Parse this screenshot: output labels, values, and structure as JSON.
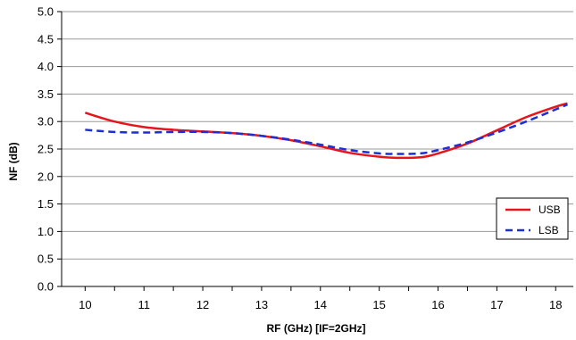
{
  "chart_data": {
    "type": "line",
    "xlabel": "RF (GHz) [IF=2GHz]",
    "ylabel": "NF (dB)",
    "xlim": [
      9.6,
      18.3
    ],
    "ylim": [
      0,
      5
    ],
    "x_ticks": [
      10,
      11,
      12,
      13,
      14,
      15,
      16,
      17,
      18
    ],
    "x_tick_labels": [
      "10",
      "11",
      "12",
      "13",
      "14",
      "15",
      "16",
      "17",
      "18"
    ],
    "y_ticks": [
      0,
      0.5,
      1,
      1.5,
      2,
      2.5,
      3,
      3.5,
      4,
      4.5,
      5
    ],
    "y_tick_labels": [
      "0.0",
      "0.5",
      "1.0",
      "1.5",
      "2.0",
      "2.5",
      "3.0",
      "3.5",
      "4.0",
      "4.5",
      "5.0"
    ],
    "grid": "horizontal",
    "legend_position": "right",
    "series": [
      {
        "name": "USB",
        "color": "#e8141b",
        "style": "solid",
        "x": [
          10.0,
          10.5,
          11.0,
          11.5,
          12.0,
          12.5,
          13.0,
          13.5,
          14.0,
          14.5,
          15.0,
          15.3,
          15.7,
          16.0,
          16.5,
          17.0,
          17.5,
          18.0,
          18.2
        ],
        "y": [
          3.16,
          3.0,
          2.9,
          2.85,
          2.82,
          2.79,
          2.74,
          2.66,
          2.55,
          2.43,
          2.36,
          2.34,
          2.35,
          2.42,
          2.6,
          2.84,
          3.08,
          3.27,
          3.33
        ]
      },
      {
        "name": "LSB",
        "color": "#1c2fd6",
        "style": "dashed",
        "x": [
          10.0,
          10.5,
          11.0,
          11.5,
          12.0,
          12.5,
          13.0,
          13.5,
          14.0,
          14.5,
          15.0,
          15.3,
          15.7,
          16.0,
          16.5,
          17.0,
          17.5,
          18.0,
          18.2
        ],
        "y": [
          2.85,
          2.81,
          2.8,
          2.81,
          2.81,
          2.79,
          2.74,
          2.67,
          2.58,
          2.48,
          2.42,
          2.41,
          2.42,
          2.48,
          2.62,
          2.8,
          3.0,
          3.22,
          3.31
        ]
      }
    ]
  }
}
